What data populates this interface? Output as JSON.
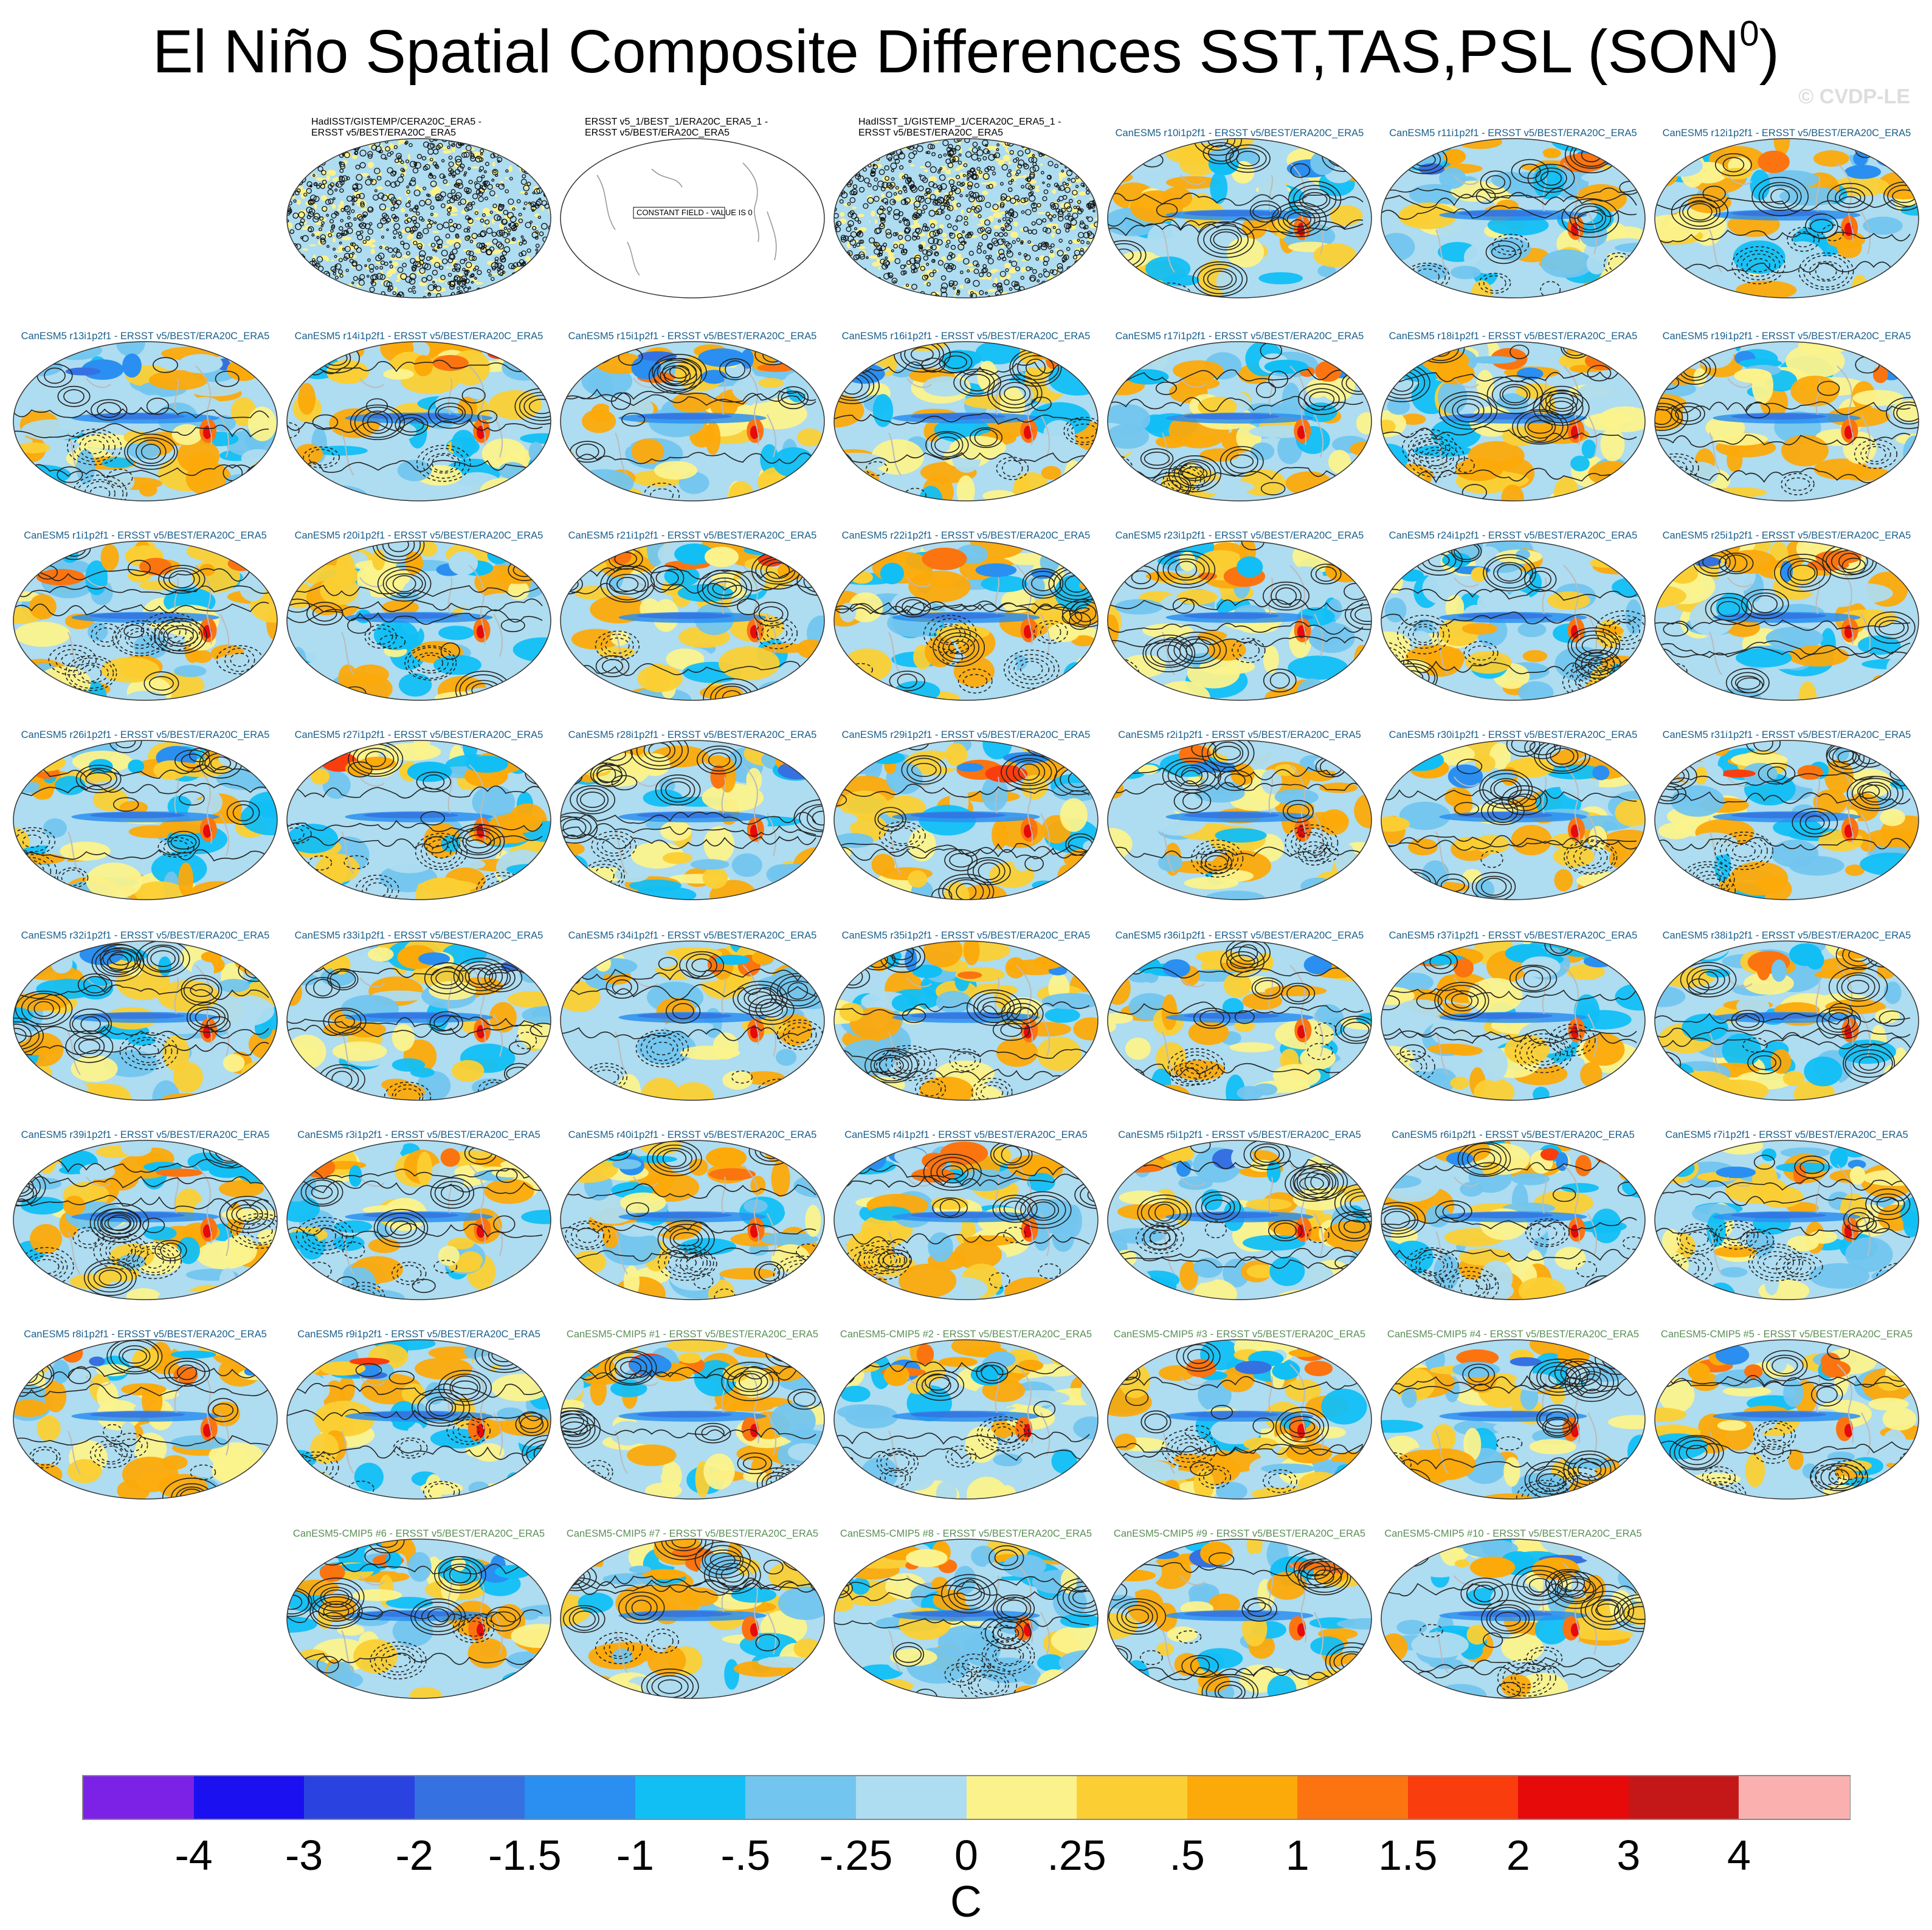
{
  "figure": {
    "title_main": "El Niño Spatial Composite Differences SST,TAS,PSL (SON",
    "title_sup": "0",
    "title_close": ")",
    "watermark": "© CVDP-LE"
  },
  "colors": {
    "obs_title": "#000000",
    "model_title": "#1a5f8a",
    "cmip5_title": "#5b8e57"
  },
  "panels": [
    {
      "title": "HadISST/GISTEMP/CERA20C_ERA5 -\nERSST v5/BEST/ERA20C_ERA5",
      "kind": "obs-noise"
    },
    {
      "title": "ERSST v5_1/BEST_1/ERA20C_ERA5_1 -\nERSST v5/BEST/ERA20C_ERA5",
      "kind": "constant",
      "note": "CONSTANT FIELD - VALUE IS 0"
    },
    {
      "title": "HadISST_1/GISTEMP_1/CERA20C_ERA5_1 -\nERSST v5/BEST/ERA20C_ERA5",
      "kind": "obs-noise"
    },
    {
      "title": "CanESM5 r10i1p2f1 - ERSST v5/BEST/ERA20C_ERA5",
      "kind": "model"
    },
    {
      "title": "CanESM5 r11i1p2f1 - ERSST v5/BEST/ERA20C_ERA5",
      "kind": "model"
    },
    {
      "title": "CanESM5 r12i1p2f1 - ERSST v5/BEST/ERA20C_ERA5",
      "kind": "model"
    },
    {
      "title": "CanESM5 r13i1p2f1 - ERSST v5/BEST/ERA20C_ERA5",
      "kind": "model"
    },
    {
      "title": "CanESM5 r14i1p2f1 - ERSST v5/BEST/ERA20C_ERA5",
      "kind": "model"
    },
    {
      "title": "CanESM5 r15i1p2f1 - ERSST v5/BEST/ERA20C_ERA5",
      "kind": "model"
    },
    {
      "title": "CanESM5 r16i1p2f1 - ERSST v5/BEST/ERA20C_ERA5",
      "kind": "model"
    },
    {
      "title": "CanESM5 r17i1p2f1 - ERSST v5/BEST/ERA20C_ERA5",
      "kind": "model"
    },
    {
      "title": "CanESM5 r18i1p2f1 - ERSST v5/BEST/ERA20C_ERA5",
      "kind": "model"
    },
    {
      "title": "CanESM5 r19i1p2f1 - ERSST v5/BEST/ERA20C_ERA5",
      "kind": "model"
    },
    {
      "title": "CanESM5 r1i1p2f1 - ERSST v5/BEST/ERA20C_ERA5",
      "kind": "model"
    },
    {
      "title": "CanESM5 r20i1p2f1 - ERSST v5/BEST/ERA20C_ERA5",
      "kind": "model"
    },
    {
      "title": "CanESM5 r21i1p2f1 - ERSST v5/BEST/ERA20C_ERA5",
      "kind": "model"
    },
    {
      "title": "CanESM5 r22i1p2f1 - ERSST v5/BEST/ERA20C_ERA5",
      "kind": "model"
    },
    {
      "title": "CanESM5 r23i1p2f1 - ERSST v5/BEST/ERA20C_ERA5",
      "kind": "model"
    },
    {
      "title": "CanESM5 r24i1p2f1 - ERSST v5/BEST/ERA20C_ERA5",
      "kind": "model"
    },
    {
      "title": "CanESM5 r25i1p2f1 - ERSST v5/BEST/ERA20C_ERA5",
      "kind": "model"
    },
    {
      "title": "CanESM5 r26i1p2f1 - ERSST v5/BEST/ERA20C_ERA5",
      "kind": "model"
    },
    {
      "title": "CanESM5 r27i1p2f1 - ERSST v5/BEST/ERA20C_ERA5",
      "kind": "model"
    },
    {
      "title": "CanESM5 r28i1p2f1 - ERSST v5/BEST/ERA20C_ERA5",
      "kind": "model"
    },
    {
      "title": "CanESM5 r29i1p2f1 - ERSST v5/BEST/ERA20C_ERA5",
      "kind": "model"
    },
    {
      "title": "CanESM5 r2i1p2f1 - ERSST v5/BEST/ERA20C_ERA5",
      "kind": "model"
    },
    {
      "title": "CanESM5 r30i1p2f1 - ERSST v5/BEST/ERA20C_ERA5",
      "kind": "model"
    },
    {
      "title": "CanESM5 r31i1p2f1 - ERSST v5/BEST/ERA20C_ERA5",
      "kind": "model"
    },
    {
      "title": "CanESM5 r32i1p2f1 - ERSST v5/BEST/ERA20C_ERA5",
      "kind": "model"
    },
    {
      "title": "CanESM5 r33i1p2f1 - ERSST v5/BEST/ERA20C_ERA5",
      "kind": "model"
    },
    {
      "title": "CanESM5 r34i1p2f1 - ERSST v5/BEST/ERA20C_ERA5",
      "kind": "model"
    },
    {
      "title": "CanESM5 r35i1p2f1 - ERSST v5/BEST/ERA20C_ERA5",
      "kind": "model"
    },
    {
      "title": "CanESM5 r36i1p2f1 - ERSST v5/BEST/ERA20C_ERA5",
      "kind": "model"
    },
    {
      "title": "CanESM5 r37i1p2f1 - ERSST v5/BEST/ERA20C_ERA5",
      "kind": "model"
    },
    {
      "title": "CanESM5 r38i1p2f1 - ERSST v5/BEST/ERA20C_ERA5",
      "kind": "model"
    },
    {
      "title": "CanESM5 r39i1p2f1 - ERSST v5/BEST/ERA20C_ERA5",
      "kind": "model"
    },
    {
      "title": "CanESM5 r3i1p2f1 - ERSST v5/BEST/ERA20C_ERA5",
      "kind": "model"
    },
    {
      "title": "CanESM5 r40i1p2f1 - ERSST v5/BEST/ERA20C_ERA5",
      "kind": "model"
    },
    {
      "title": "CanESM5 r4i1p2f1 - ERSST v5/BEST/ERA20C_ERA5",
      "kind": "model"
    },
    {
      "title": "CanESM5 r5i1p2f1 - ERSST v5/BEST/ERA20C_ERA5",
      "kind": "model"
    },
    {
      "title": "CanESM5 r6i1p2f1 - ERSST v5/BEST/ERA20C_ERA5",
      "kind": "model"
    },
    {
      "title": "CanESM5 r7i1p2f1 - ERSST v5/BEST/ERA20C_ERA5",
      "kind": "model"
    },
    {
      "title": "CanESM5 r8i1p2f1 - ERSST v5/BEST/ERA20C_ERA5",
      "kind": "model"
    },
    {
      "title": "CanESM5 r9i1p2f1 - ERSST v5/BEST/ERA20C_ERA5",
      "kind": "model"
    },
    {
      "title": "CanESM5-CMIP5 #1 - ERSST v5/BEST/ERA20C_ERA5",
      "kind": "cmip5"
    },
    {
      "title": "CanESM5-CMIP5 #2 - ERSST v5/BEST/ERA20C_ERA5",
      "kind": "cmip5"
    },
    {
      "title": "CanESM5-CMIP5 #3 - ERSST v5/BEST/ERA20C_ERA5",
      "kind": "cmip5"
    },
    {
      "title": "CanESM5-CMIP5 #4 - ERSST v5/BEST/ERA20C_ERA5",
      "kind": "cmip5"
    },
    {
      "title": "CanESM5-CMIP5 #5 - ERSST v5/BEST/ERA20C_ERA5",
      "kind": "cmip5"
    },
    {
      "title": "CanESM5-CMIP5 #6 - ERSST v5/BEST/ERA20C_ERA5",
      "kind": "cmip5"
    },
    {
      "title": "CanESM5-CMIP5 #7 - ERSST v5/BEST/ERA20C_ERA5",
      "kind": "cmip5"
    },
    {
      "title": "CanESM5-CMIP5 #8 - ERSST v5/BEST/ERA20C_ERA5",
      "kind": "cmip5"
    },
    {
      "title": "CanESM5-CMIP5 #9 - ERSST v5/BEST/ERA20C_ERA5",
      "kind": "cmip5"
    },
    {
      "title": "CanESM5-CMIP5 #10 - ERSST v5/BEST/ERA20C_ERA5",
      "kind": "cmip5"
    }
  ],
  "colorbar": {
    "colors": [
      "#7c22e6",
      "#1a10f0",
      "#2a43e0",
      "#3571e0",
      "#2a8ff0",
      "#11bff5",
      "#72c5ee",
      "#aedcf0",
      "#fbf28c",
      "#fbcf33",
      "#fca90a",
      "#fb7410",
      "#fa3d0d",
      "#e60a0a",
      "#c41818",
      "#fbb0b0"
    ],
    "labels": [
      "-4",
      "-3",
      "-2",
      "-1.5",
      "-1",
      "-.5",
      "-.25",
      "0",
      ".25",
      ".5",
      "1",
      "1.5",
      "2",
      "3",
      "4"
    ],
    "units": "C"
  }
}
